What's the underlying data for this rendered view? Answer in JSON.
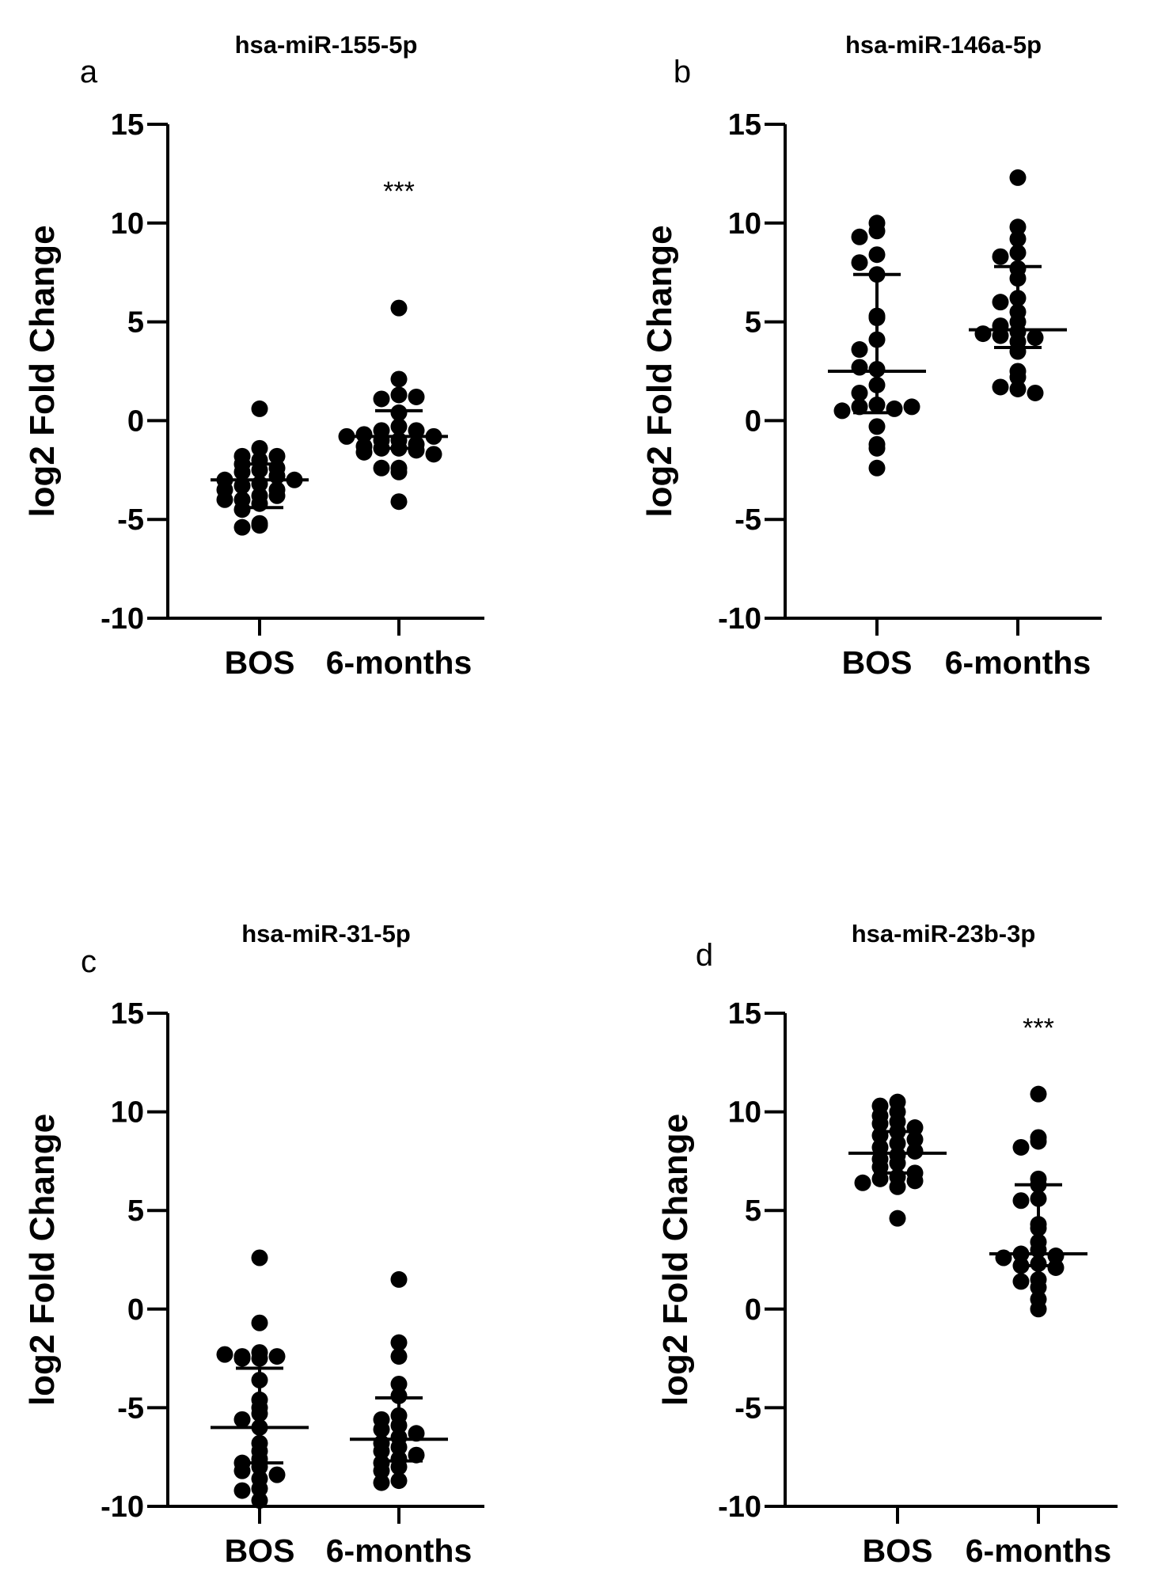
{
  "chart_data": [
    {
      "type": "scatter",
      "panel": "a",
      "title": "hsa-miR-155-5p",
      "ylabel": "log2 Fold Change",
      "ylim": [
        -10,
        15
      ],
      "yticks": [
        "-10",
        "-5",
        "0",
        "5",
        "10",
        "15"
      ],
      "categories": [
        "BOS",
        "6-months"
      ],
      "significance": "***",
      "significance_category": "6-months",
      "groups": [
        {
          "name": "BOS",
          "median": -3.0,
          "error_low": -4.4,
          "error_high": -2.2,
          "points": [
            0.6,
            -1.4,
            -1.8,
            -1.8,
            -2.0,
            -2.2,
            -2.5,
            -2.4,
            -2.6,
            -2.8,
            -3.0,
            -3.0,
            -3.2,
            -3.3,
            -3.5,
            -3.5,
            -3.8,
            -4.0,
            -3.8,
            -4.0,
            -4.2,
            -4.5,
            -5.2,
            -5.3,
            -5.4
          ]
        },
        {
          "name": "6-months",
          "median": -0.8,
          "error_low": -1.4,
          "error_high": 0.5,
          "points": [
            5.7,
            2.1,
            1.3,
            1.1,
            1.2,
            0.4,
            -0.3,
            -0.5,
            -0.5,
            -0.7,
            -0.8,
            -0.8,
            -1.0,
            -1.0,
            -1.2,
            -1.3,
            -1.4,
            -1.4,
            -1.5,
            -1.6,
            -1.7,
            -2.4,
            -2.4,
            -2.6,
            -4.1
          ]
        }
      ]
    },
    {
      "type": "scatter",
      "panel": "b",
      "title": "hsa-miR-146a-5p",
      "ylabel": "log2 Fold Change",
      "ylim": [
        -10,
        15
      ],
      "yticks": [
        "-10",
        "-5",
        "0",
        "5",
        "10",
        "15"
      ],
      "categories": [
        "BOS",
        "6-months"
      ],
      "significance": "",
      "significance_category": "",
      "groups": [
        {
          "name": "BOS",
          "median": 2.5,
          "error_low": 0.4,
          "error_high": 7.4,
          "points": [
            10.0,
            9.6,
            9.3,
            8.4,
            8.0,
            7.4,
            5.3,
            5.2,
            4.1,
            3.6,
            2.6,
            2.7,
            1.8,
            1.4,
            0.8,
            0.7,
            0.6,
            0.5,
            0.7,
            -0.3,
            -1.2,
            -1.4,
            -2.4
          ]
        },
        {
          "name": "6-months",
          "median": 4.6,
          "error_low": 3.7,
          "error_high": 7.8,
          "points": [
            12.3,
            9.8,
            9.2,
            8.5,
            8.3,
            7.7,
            7.2,
            6.2,
            6.0,
            5.5,
            5.0,
            4.8,
            4.5,
            4.3,
            4.2,
            4.0,
            4.4,
            3.5,
            2.5,
            2.2,
            1.6,
            1.7,
            1.4
          ]
        }
      ]
    },
    {
      "type": "scatter",
      "panel": "c",
      "title": "hsa-miR-31-5p",
      "ylabel": "log2 Fold Change",
      "ylim": [
        -10,
        15
      ],
      "yticks": [
        "-10",
        "-5",
        "0",
        "5",
        "10",
        "15"
      ],
      "categories": [
        "BOS",
        "6-months"
      ],
      "significance": "",
      "significance_category": "",
      "groups": [
        {
          "name": "BOS",
          "median": -6.0,
          "error_low": -7.8,
          "error_high": -3.0,
          "points": [
            2.6,
            -0.7,
            -2.2,
            -2.4,
            -2.4,
            -2.5,
            -2.5,
            -2.3,
            -3.6,
            -4.6,
            -5.0,
            -5.3,
            -5.6,
            -6.0,
            -6.8,
            -7.2,
            -7.6,
            -7.8,
            -8.0,
            -8.2,
            -8.4,
            -8.6,
            -9.1,
            -9.2,
            -9.7
          ]
        },
        {
          "name": "6-months",
          "median": -6.6,
          "error_low": -7.7,
          "error_high": -4.5,
          "points": [
            1.5,
            -1.7,
            -2.4,
            -3.8,
            -4.4,
            -5.4,
            -5.6,
            -5.9,
            -6.1,
            -6.3,
            -6.5,
            -6.8,
            -7.0,
            -7.2,
            -7.4,
            -7.6,
            -7.8,
            -8.0,
            -8.2,
            -8.7,
            -8.8
          ]
        }
      ]
    },
    {
      "type": "scatter",
      "panel": "d",
      "title": "hsa-miR-23b-3p",
      "ylabel": "log2 Fold Change",
      "ylim": [
        -10,
        15
      ],
      "yticks": [
        "-10",
        "-5",
        "0",
        "5",
        "10",
        "15"
      ],
      "categories": [
        "BOS",
        "6-months"
      ],
      "significance": "***",
      "significance_category": "6-months",
      "groups": [
        {
          "name": "BOS",
          "median": 7.9,
          "error_low": 6.9,
          "error_high": 9.0,
          "points": [
            10.5,
            10.3,
            10.0,
            9.8,
            9.5,
            9.4,
            9.2,
            9.0,
            8.8,
            8.6,
            8.4,
            8.2,
            8.0,
            7.8,
            7.6,
            7.4,
            7.2,
            6.9,
            6.7,
            6.6,
            6.5,
            6.4,
            6.2,
            4.6
          ]
        },
        {
          "name": "6-months",
          "median": 2.8,
          "error_low": 2.2,
          "error_high": 6.3,
          "points": [
            10.9,
            8.7,
            8.5,
            8.2,
            6.6,
            6.3,
            5.6,
            5.5,
            4.3,
            4.1,
            3.4,
            3.0,
            2.8,
            2.7,
            2.6,
            2.3,
            2.2,
            2.1,
            1.5,
            1.4,
            1.1,
            0.5,
            0.0
          ]
        }
      ]
    }
  ]
}
